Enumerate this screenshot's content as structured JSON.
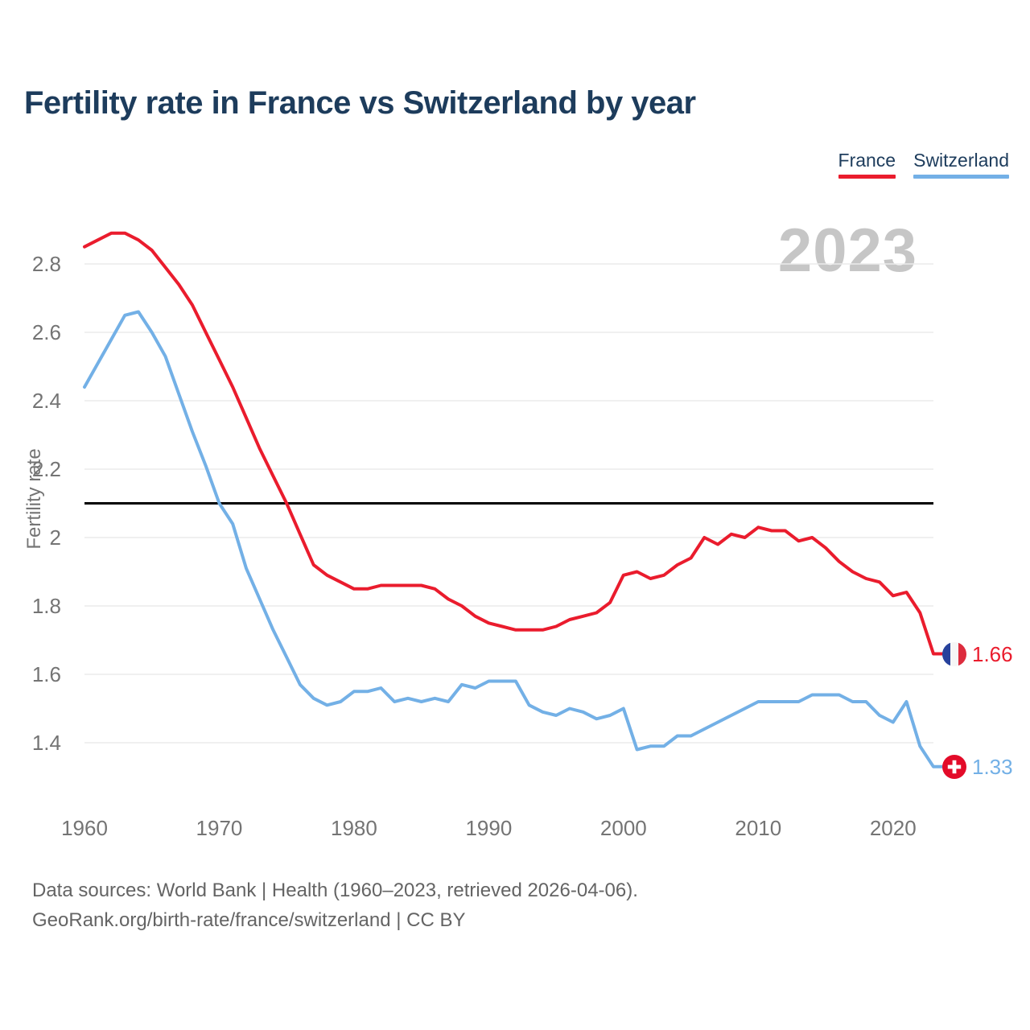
{
  "title": "Fertility rate in France vs Switzerland by year",
  "watermark_year": "2023",
  "legend": {
    "items": [
      {
        "label": "France",
        "color": "#ea1c2d"
      },
      {
        "label": "Switzerland",
        "color": "#73b0e6"
      }
    ]
  },
  "end_labels": [
    {
      "series": "France",
      "flag": "france",
      "value_label": "1.66",
      "value": 1.66,
      "color": "#ea1c2d"
    },
    {
      "series": "Switzerland",
      "flag": "switzerland",
      "value_label": "1.33",
      "value": 1.33,
      "color": "#73b0e6"
    }
  ],
  "footer": {
    "line1": "Data sources: World Bank | Health (1960–2023, retrieved 2026-04-06).",
    "line2": "GeoRank.org/birth-rate/france/switzerland | CC BY"
  },
  "colors": {
    "title_text": "#1d3c5c",
    "axis_text": "#747474",
    "grid": "#ebebeb",
    "reference_line": "#000000",
    "watermark": "#c6c6c6",
    "footer_text": "#646464",
    "france": "#ea1c2d",
    "switzerland": "#73b0e6"
  },
  "chart_data": {
    "type": "line",
    "title": "Fertility rate in France vs Switzerland by year",
    "xlabel": "",
    "ylabel": "Fertility rate",
    "grid": "horizontal",
    "legend_position": "top-right",
    "xlim": [
      1960,
      2023
    ],
    "ylim": [
      1.27,
      2.96
    ],
    "xticks": [
      1960,
      1970,
      1980,
      1990,
      2000,
      2010,
      2020
    ],
    "yticks": [
      1.4,
      1.6,
      1.8,
      2,
      2.2,
      2.4,
      2.6,
      2.8
    ],
    "ytick_labels": [
      "1.4",
      "1.6",
      "1.8",
      "2",
      "2.2",
      "2.4",
      "2.6",
      "2.8"
    ],
    "reference_line": {
      "value": 2.1,
      "color": "#000000"
    },
    "x": [
      1960,
      1961,
      1962,
      1963,
      1964,
      1965,
      1966,
      1967,
      1968,
      1969,
      1970,
      1971,
      1972,
      1973,
      1974,
      1975,
      1976,
      1977,
      1978,
      1979,
      1980,
      1981,
      1982,
      1983,
      1984,
      1985,
      1986,
      1987,
      1988,
      1989,
      1990,
      1991,
      1992,
      1993,
      1994,
      1995,
      1996,
      1997,
      1998,
      1999,
      2000,
      2001,
      2002,
      2003,
      2004,
      2005,
      2006,
      2007,
      2008,
      2009,
      2010,
      2011,
      2012,
      2013,
      2014,
      2015,
      2016,
      2017,
      2018,
      2019,
      2020,
      2021,
      2022,
      2023
    ],
    "series": [
      {
        "name": "France",
        "color": "#ea1c2d",
        "values": [
          2.85,
          2.87,
          2.89,
          2.89,
          2.87,
          2.84,
          2.79,
          2.74,
          2.68,
          2.6,
          2.52,
          2.44,
          2.35,
          2.26,
          2.18,
          2.1,
          2.01,
          1.92,
          1.89,
          1.87,
          1.85,
          1.85,
          1.86,
          1.86,
          1.86,
          1.86,
          1.85,
          1.82,
          1.8,
          1.77,
          1.75,
          1.74,
          1.73,
          1.73,
          1.73,
          1.74,
          1.76,
          1.77,
          1.78,
          1.81,
          1.89,
          1.9,
          1.88,
          1.89,
          1.92,
          1.94,
          2.0,
          1.98,
          2.01,
          2.0,
          2.03,
          2.02,
          2.02,
          1.99,
          2.0,
          1.97,
          1.93,
          1.9,
          1.88,
          1.87,
          1.83,
          1.84,
          1.78,
          1.66
        ]
      },
      {
        "name": "Switzerland",
        "color": "#73b0e6",
        "values": [
          2.44,
          2.51,
          2.58,
          2.65,
          2.66,
          2.6,
          2.53,
          2.42,
          2.31,
          2.21,
          2.1,
          2.04,
          1.91,
          1.82,
          1.73,
          1.65,
          1.57,
          1.53,
          1.51,
          1.52,
          1.55,
          1.55,
          1.56,
          1.52,
          1.53,
          1.52,
          1.53,
          1.52,
          1.57,
          1.56,
          1.58,
          1.58,
          1.58,
          1.51,
          1.49,
          1.48,
          1.5,
          1.49,
          1.47,
          1.48,
          1.5,
          1.38,
          1.39,
          1.39,
          1.42,
          1.42,
          1.44,
          1.46,
          1.48,
          1.5,
          1.52,
          1.52,
          1.52,
          1.52,
          1.54,
          1.54,
          1.54,
          1.52,
          1.52,
          1.48,
          1.46,
          1.52,
          1.39,
          1.33
        ]
      }
    ],
    "end_annotations": [
      {
        "series": "France",
        "year": 2023,
        "value": 1.66
      },
      {
        "series": "Switzerland",
        "year": 2023,
        "value": 1.33
      }
    ]
  }
}
